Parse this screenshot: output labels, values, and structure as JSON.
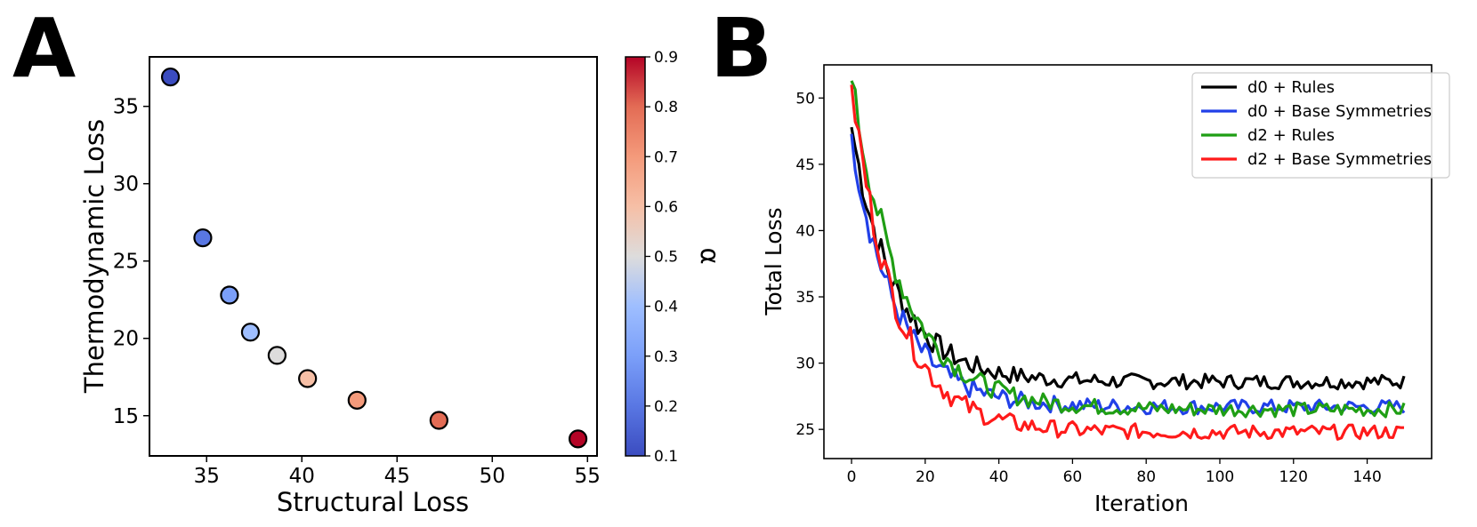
{
  "chart_data": [
    {
      "panel": "A",
      "type": "scatter",
      "xlabel": "Structural Loss",
      "ylabel": "Thermodynamic Loss",
      "xlim": [
        32,
        55.5
      ],
      "ylim": [
        12.4,
        38.2
      ],
      "xticks": [
        35,
        40,
        45,
        50,
        55
      ],
      "yticks": [
        15,
        20,
        25,
        30,
        35
      ],
      "points": [
        {
          "x": 33.1,
          "y": 36.9,
          "alpha": 0.1
        },
        {
          "x": 34.8,
          "y": 26.5,
          "alpha": 0.2
        },
        {
          "x": 36.2,
          "y": 22.8,
          "alpha": 0.3
        },
        {
          "x": 37.3,
          "y": 20.4,
          "alpha": 0.4
        },
        {
          "x": 38.7,
          "y": 18.9,
          "alpha": 0.5
        },
        {
          "x": 40.3,
          "y": 17.4,
          "alpha": 0.6
        },
        {
          "x": 42.9,
          "y": 16.0,
          "alpha": 0.7
        },
        {
          "x": 47.2,
          "y": 14.7,
          "alpha": 0.8
        },
        {
          "x": 54.5,
          "y": 13.5,
          "alpha": 0.9
        }
      ],
      "colorbar": {
        "label": "α",
        "range": [
          0.1,
          0.9
        ],
        "ticks": [
          "0.1",
          "0.2",
          "0.3",
          "0.4",
          "0.5",
          "0.6",
          "0.7",
          "0.8",
          "0.9"
        ],
        "colormap": "coolwarm"
      }
    },
    {
      "panel": "B",
      "type": "line",
      "xlabel": "Iteration",
      "ylabel": "Total Loss",
      "xlim": [
        -7.5,
        157.5
      ],
      "ylim": [
        22.8,
        52.5
      ],
      "xticks": [
        0,
        20,
        40,
        60,
        80,
        100,
        120,
        140
      ],
      "yticks": [
        25,
        30,
        35,
        40,
        45,
        50
      ],
      "legend_position": "top-right",
      "series": [
        {
          "name": "d0 + Rules",
          "color": "#000000",
          "start": 47.8,
          "plateau": 28.6,
          "decay": 12,
          "noise": 0.55
        },
        {
          "name": "d0 + Base Symmetries",
          "color": "#2140e8",
          "start": 47.3,
          "plateau": 26.7,
          "decay": 12,
          "noise": 0.55
        },
        {
          "name": "d2 + Rules",
          "color": "#1f9e14",
          "start": 51.3,
          "plateau": 26.5,
          "decay": 14,
          "noise": 0.55
        },
        {
          "name": "d2 + Base Symmetries",
          "color": "#ff1a1a",
          "start": 51.0,
          "plateau": 24.8,
          "decay": 12,
          "noise": 0.55
        }
      ],
      "iterations": 150
    }
  ]
}
